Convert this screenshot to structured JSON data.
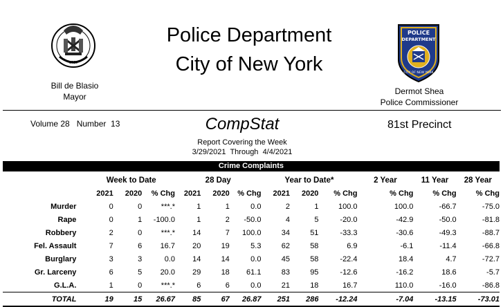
{
  "header": {
    "title_line1": "Police Department",
    "title_line2": "City of New York",
    "mayor_name": "Bill de Blasio",
    "mayor_title": "Mayor",
    "commissioner_name": "Dermot Shea",
    "commissioner_title": "Police Commissioner",
    "patch_text_top": "POLICE",
    "patch_text_mid": "DEPARTMENT",
    "patch_text_bottom": "CITY OF NEW YORK"
  },
  "report": {
    "volume_label": "Volume 28   Number  13",
    "name": "CompStat",
    "precinct": "81st Precinct",
    "covering": "Report Covering the Week",
    "from": "3/29/2021",
    "through_label": "Through",
    "to": "4/4/2021"
  },
  "section": {
    "title": "Crime Complaints"
  },
  "table": {
    "groups": [
      "Week to Date",
      "28 Day",
      "Year to Date*",
      "2 Year",
      "11 Year",
      "28 Year"
    ],
    "subheaders": [
      "2021",
      "2020",
      "% Chg",
      "2021",
      "2020",
      "% Chg",
      "2021",
      "2020",
      "% Chg",
      "% Chg",
      "% Chg",
      "% Chg"
    ],
    "rows": [
      {
        "label": "Murder",
        "cells": [
          "0",
          "0",
          "***.*",
          "1",
          "1",
          "0.0",
          "2",
          "1",
          "100.0",
          "100.0",
          "-66.7",
          "-75.0"
        ]
      },
      {
        "label": "Rape",
        "cells": [
          "0",
          "1",
          "-100.0",
          "1",
          "2",
          "-50.0",
          "4",
          "5",
          "-20.0",
          "-42.9",
          "-50.0",
          "-81.8"
        ]
      },
      {
        "label": "Robbery",
        "cells": [
          "2",
          "0",
          "***.*",
          "14",
          "7",
          "100.0",
          "34",
          "51",
          "-33.3",
          "-30.6",
          "-49.3",
          "-88.7"
        ]
      },
      {
        "label": "Fel. Assault",
        "cells": [
          "7",
          "6",
          "16.7",
          "20",
          "19",
          "5.3",
          "62",
          "58",
          "6.9",
          "-6.1",
          "-11.4",
          "-66.8"
        ]
      },
      {
        "label": "Burglary",
        "cells": [
          "3",
          "3",
          "0.0",
          "14",
          "14",
          "0.0",
          "45",
          "58",
          "-22.4",
          "18.4",
          "4.7",
          "-72.7"
        ]
      },
      {
        "label": "Gr. Larceny",
        "cells": [
          "6",
          "5",
          "20.0",
          "29",
          "18",
          "61.1",
          "83",
          "95",
          "-12.6",
          "-16.2",
          "18.6",
          "-5.7"
        ]
      },
      {
        "label": "G.L.A.",
        "cells": [
          "1",
          "0",
          "***.*",
          "6",
          "6",
          "0.0",
          "21",
          "18",
          "16.7",
          "110.0",
          "-16.0",
          "-86.8"
        ]
      }
    ],
    "total": {
      "label": "TOTAL",
      "cells": [
        "19",
        "15",
        "26.67",
        "85",
        "67",
        "26.87",
        "251",
        "286",
        "-12.24",
        "-7.04",
        "-13.15",
        "-73.01"
      ]
    }
  },
  "colors": {
    "bar_bg": "#000000",
    "patch_blue": "#1f3a8a",
    "patch_gold": "#e0b020"
  }
}
